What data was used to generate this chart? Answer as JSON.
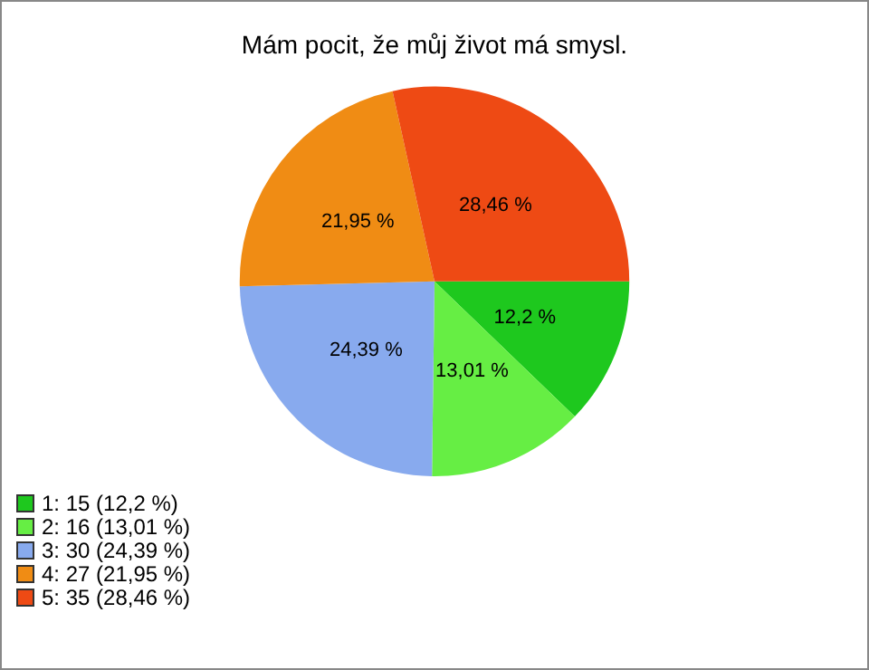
{
  "chart_data": {
    "type": "pie",
    "title": "Mám pocit, že můj život má smysl.",
    "categories": [
      "1: 15 (12,2 %)",
      "2: 16 (13,01 %)",
      "3: 30 (24,39 %)",
      "4: 27 (21,95 %)",
      "5: 35 (28,46 %)"
    ],
    "values": [
      12.2,
      13.01,
      24.39,
      21.95,
      28.46
    ],
    "value_labels": [
      "12,2 %",
      "13,01 %",
      "24,39 %",
      "21,95 %",
      "28,46 %"
    ],
    "colors": [
      "#1ec81e",
      "#66ee44",
      "#88aaee",
      "#f08c14",
      "#ee4a14"
    ],
    "legend": "bottom left"
  }
}
